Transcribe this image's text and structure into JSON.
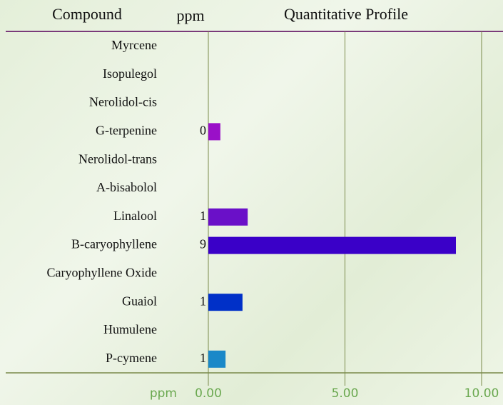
{
  "chart_data": {
    "type": "bar",
    "orientation": "horizontal",
    "headers": [
      "Compound",
      "ppm",
      "Quantitative Profile"
    ],
    "x_label": "ppm",
    "categories": [
      "Myrcene",
      "Isopulegol",
      "Nerolidol-cis",
      "G-terpenine",
      "Nerolidol-trans",
      "A-bisabolol",
      "Linalool",
      "B-caryophyllene",
      "Caryophyllene Oxide",
      "Guaiol",
      "Humulene",
      "P-cymene"
    ],
    "values": [
      null,
      null,
      null,
      0.44,
      null,
      null,
      1.44,
      9.06,
      null,
      1.25,
      null,
      0.63
    ],
    "value_labels": [
      null,
      null,
      null,
      "0",
      null,
      null,
      "1",
      "9",
      null,
      "1",
      null,
      "1"
    ],
    "colors": [
      null,
      null,
      null,
      "#9a10c8",
      null,
      null,
      "#6a10c8",
      "#3a00c8",
      null,
      "#0030c8",
      null,
      "#1a88c8"
    ],
    "xlim": [
      0,
      10
    ],
    "xticks": [
      {
        "value": 0,
        "label": "0.00"
      },
      {
        "value": 5,
        "label": "5.00"
      },
      {
        "value": 10,
        "label": "10.00"
      }
    ],
    "grid": true
  }
}
